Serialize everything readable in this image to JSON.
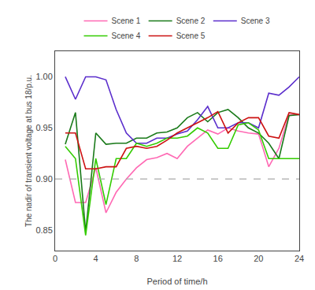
{
  "chart_data": {
    "type": "line",
    "x": [
      1,
      2,
      3,
      4,
      5,
      6,
      7,
      8,
      9,
      10,
      11,
      12,
      13,
      14,
      15,
      16,
      17,
      18,
      19,
      20,
      21,
      22,
      23,
      24
    ],
    "series": [
      {
        "name": "Scene 1",
        "color": "#FF69B4",
        "values": [
          0.919,
          0.877,
          0.877,
          0.911,
          0.867,
          0.887,
          0.9,
          0.911,
          0.919,
          0.921,
          0.925,
          0.92,
          0.932,
          0.94,
          0.948,
          0.944,
          0.95,
          0.947,
          0.945,
          0.944,
          0.912,
          0.93,
          0.963,
          0.963
        ]
      },
      {
        "name": "Scene 2",
        "color": "#1a7a1a",
        "values": [
          0.934,
          0.965,
          0.848,
          0.945,
          0.934,
          0.935,
          0.935,
          0.94,
          0.94,
          0.945,
          0.946,
          0.95,
          0.96,
          0.965,
          0.956,
          0.965,
          0.968,
          0.96,
          0.95,
          0.945,
          0.935,
          0.92,
          0.962,
          0.963
        ]
      },
      {
        "name": "Scene 3",
        "color": "#5B2ECC",
        "values": [
          1.0,
          0.978,
          1.0,
          1.0,
          0.997,
          0.968,
          0.945,
          0.935,
          0.935,
          0.94,
          0.94,
          0.944,
          0.947,
          0.958,
          0.971,
          0.95,
          0.95,
          0.955,
          0.955,
          0.95,
          0.984,
          0.982,
          0.99,
          1.0
        ]
      },
      {
        "name": "Scene 4",
        "color": "#33CC00",
        "values": [
          0.932,
          0.92,
          0.845,
          0.92,
          0.875,
          0.92,
          0.92,
          0.935,
          0.932,
          0.935,
          0.94,
          0.94,
          0.942,
          0.95,
          0.945,
          0.93,
          0.93,
          0.953,
          0.955,
          0.948,
          0.92,
          0.92,
          0.92,
          0.92
        ]
      },
      {
        "name": "Scene 5",
        "color": "#CC1111",
        "values": [
          0.945,
          0.945,
          0.91,
          0.91,
          0.912,
          0.912,
          0.93,
          0.932,
          0.93,
          0.932,
          0.938,
          0.945,
          0.95,
          0.955,
          0.96,
          0.966,
          0.945,
          0.955,
          0.96,
          0.96,
          0.942,
          0.94,
          0.965,
          0.963
        ]
      }
    ],
    "reference_line": {
      "value": 0.9,
      "color": "#aaaaaa",
      "line_style": "dashed"
    },
    "xlabel": "Period of time/h",
    "ylabel": "The nadir of transient voltage at bus 18/p.u.",
    "xlim": [
      0,
      24
    ],
    "ylim": [
      0.83,
      1.025
    ],
    "xticks": [
      0,
      4,
      8,
      12,
      16,
      20,
      24
    ],
    "yticks": [
      0.85,
      {
        "value": 0.9,
        "label": "0.90"
      },
      0.95,
      {
        "value": 1.0,
        "label": "1.00"
      }
    ],
    "grid": false,
    "legend": "top"
  }
}
